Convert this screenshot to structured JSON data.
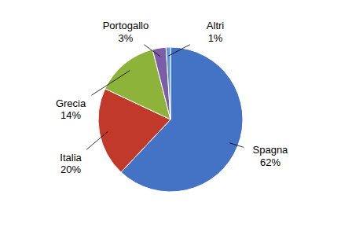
{
  "chart_data": {
    "type": "pie",
    "categories": [
      "Spagna",
      "Italia",
      "Grecia",
      "Portogallo",
      "Altri"
    ],
    "values": [
      62,
      20,
      14,
      3,
      1
    ],
    "value_labels": [
      "62%",
      "20%",
      "14%",
      "3%",
      "1%"
    ],
    "colors": [
      "#4472C4",
      "#C0392B",
      "#8DB33A",
      "#7B5EA7",
      "#5B9BD5"
    ],
    "data_labels": true
  }
}
